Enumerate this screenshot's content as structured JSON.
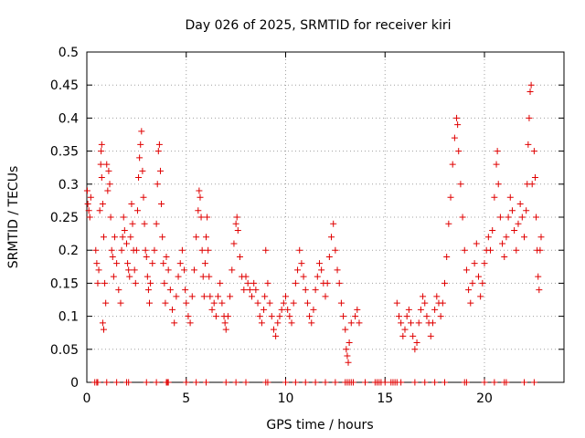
{
  "chart_data": {
    "type": "scatter",
    "title": "Day 026 of 2025, SRMTID for receiver kiri",
    "xlabel": "GPS time / hours",
    "ylabel": "SRMTID / TECUs",
    "xlim": [
      0,
      24
    ],
    "ylim": [
      0,
      0.5
    ],
    "xticks": [
      0,
      5,
      10,
      15,
      20
    ],
    "yticks": [
      0,
      0.05,
      0.1,
      0.15,
      0.2,
      0.25,
      0.3,
      0.35,
      0.4,
      0.45,
      0.5
    ],
    "xtick_labels": [
      "0",
      "5",
      "10",
      "15",
      "20"
    ],
    "ytick_labels": [
      "0",
      "0.05",
      "0.1",
      "0.15",
      "0.2",
      "0.25",
      "0.3",
      "0.35",
      "0.4",
      "0.45",
      "0.5"
    ],
    "grid": true,
    "marker": "+",
    "color": "#e00000",
    "series": [
      {
        "name": "SRMTID",
        "points": [
          [
            0.02,
            0.29
          ],
          [
            0.05,
            0.27
          ],
          [
            0.1,
            0.26
          ],
          [
            0.15,
            0.25
          ],
          [
            0.2,
            0.28
          ],
          [
            0.45,
            0.2
          ],
          [
            0.5,
            0.18
          ],
          [
            0.55,
            0.15
          ],
          [
            0.6,
            0.17
          ],
          [
            0.65,
            0.26
          ],
          [
            0.7,
            0.33
          ],
          [
            0.72,
            0.35
          ],
          [
            0.75,
            0.31
          ],
          [
            0.8,
            0.27
          ],
          [
            0.85,
            0.22
          ],
          [
            0.9,
            0.15
          ],
          [
            0.95,
            0.12
          ],
          [
            0.8,
            0.09
          ],
          [
            0.85,
            0.08
          ],
          [
            0.75,
            0.36
          ],
          [
            1.0,
            0.33
          ],
          [
            1.05,
            0.29
          ],
          [
            1.1,
            0.32
          ],
          [
            1.15,
            0.3
          ],
          [
            1.2,
            0.25
          ],
          [
            1.25,
            0.2
          ],
          [
            1.3,
            0.19
          ],
          [
            1.35,
            0.16
          ],
          [
            1.4,
            0.22
          ],
          [
            1.5,
            0.18
          ],
          [
            1.6,
            0.14
          ],
          [
            1.7,
            0.12
          ],
          [
            1.75,
            0.2
          ],
          [
            1.8,
            0.22
          ],
          [
            1.85,
            0.25
          ],
          [
            1.9,
            0.23
          ],
          [
            2.0,
            0.21
          ],
          [
            2.05,
            0.18
          ],
          [
            2.1,
            0.17
          ],
          [
            2.15,
            0.16
          ],
          [
            2.2,
            0.22
          ],
          [
            2.25,
            0.27
          ],
          [
            2.3,
            0.24
          ],
          [
            2.35,
            0.2
          ],
          [
            2.4,
            0.17
          ],
          [
            2.45,
            0.15
          ],
          [
            2.5,
            0.2
          ],
          [
            2.55,
            0.26
          ],
          [
            2.6,
            0.31
          ],
          [
            2.65,
            0.34
          ],
          [
            2.7,
            0.36
          ],
          [
            2.75,
            0.38
          ],
          [
            2.8,
            0.32
          ],
          [
            2.85,
            0.28
          ],
          [
            2.9,
            0.24
          ],
          [
            2.95,
            0.2
          ],
          [
            3.0,
            0.19
          ],
          [
            3.05,
            0.16
          ],
          [
            3.1,
            0.14
          ],
          [
            3.15,
            0.12
          ],
          [
            3.2,
            0.15
          ],
          [
            3.3,
            0.18
          ],
          [
            3.4,
            0.2
          ],
          [
            3.5,
            0.24
          ],
          [
            3.55,
            0.3
          ],
          [
            3.6,
            0.35
          ],
          [
            3.65,
            0.36
          ],
          [
            3.7,
            0.32
          ],
          [
            3.75,
            0.27
          ],
          [
            3.8,
            0.22
          ],
          [
            3.85,
            0.18
          ],
          [
            3.9,
            0.15
          ],
          [
            3.95,
            0.12
          ],
          [
            4.0,
            0.19
          ],
          [
            4.1,
            0.17
          ],
          [
            4.2,
            0.14
          ],
          [
            4.3,
            0.11
          ],
          [
            4.4,
            0.09
          ],
          [
            4.5,
            0.13
          ],
          [
            4.6,
            0.16
          ],
          [
            4.7,
            0.18
          ],
          [
            4.8,
            0.2
          ],
          [
            4.9,
            0.17
          ],
          [
            4.95,
            0.14
          ],
          [
            5.0,
            0.12
          ],
          [
            5.1,
            0.1
          ],
          [
            5.2,
            0.09
          ],
          [
            5.3,
            0.13
          ],
          [
            5.4,
            0.17
          ],
          [
            5.5,
            0.22
          ],
          [
            5.6,
            0.26
          ],
          [
            5.65,
            0.29
          ],
          [
            5.7,
            0.28
          ],
          [
            5.75,
            0.25
          ],
          [
            5.8,
            0.2
          ],
          [
            5.85,
            0.16
          ],
          [
            5.9,
            0.13
          ],
          [
            5.95,
            0.18
          ],
          [
            6.0,
            0.22
          ],
          [
            6.05,
            0.25
          ],
          [
            6.1,
            0.2
          ],
          [
            6.15,
            0.16
          ],
          [
            6.2,
            0.13
          ],
          [
            6.3,
            0.11
          ],
          [
            6.4,
            0.12
          ],
          [
            6.5,
            0.1
          ],
          [
            6.6,
            0.13
          ],
          [
            6.7,
            0.15
          ],
          [
            6.8,
            0.12
          ],
          [
            6.9,
            0.1
          ],
          [
            6.95,
            0.09
          ],
          [
            7.0,
            0.08
          ],
          [
            7.1,
            0.1
          ],
          [
            7.2,
            0.13
          ],
          [
            7.3,
            0.17
          ],
          [
            7.4,
            0.21
          ],
          [
            7.5,
            0.24
          ],
          [
            7.55,
            0.25
          ],
          [
            7.6,
            0.23
          ],
          [
            7.7,
            0.19
          ],
          [
            7.8,
            0.16
          ],
          [
            7.9,
            0.14
          ],
          [
            8.0,
            0.16
          ],
          [
            8.1,
            0.15
          ],
          [
            8.2,
            0.14
          ],
          [
            8.3,
            0.13
          ],
          [
            8.4,
            0.15
          ],
          [
            8.5,
            0.14
          ],
          [
            8.6,
            0.12
          ],
          [
            8.7,
            0.1
          ],
          [
            8.8,
            0.09
          ],
          [
            8.9,
            0.11
          ],
          [
            8.95,
            0.13
          ],
          [
            9.0,
            0.2
          ],
          [
            9.1,
            0.15
          ],
          [
            9.2,
            0.12
          ],
          [
            9.3,
            0.1
          ],
          [
            9.4,
            0.08
          ],
          [
            9.5,
            0.07
          ],
          [
            9.6,
            0.09
          ],
          [
            9.7,
            0.1
          ],
          [
            9.8,
            0.11
          ],
          [
            9.9,
            0.12
          ],
          [
            10.0,
            0.13
          ],
          [
            10.1,
            0.11
          ],
          [
            10.2,
            0.1
          ],
          [
            10.3,
            0.09
          ],
          [
            10.4,
            0.12
          ],
          [
            10.5,
            0.15
          ],
          [
            10.6,
            0.17
          ],
          [
            10.7,
            0.2
          ],
          [
            10.8,
            0.18
          ],
          [
            10.9,
            0.16
          ],
          [
            11.0,
            0.14
          ],
          [
            11.1,
            0.12
          ],
          [
            11.2,
            0.1
          ],
          [
            11.3,
            0.09
          ],
          [
            11.4,
            0.11
          ],
          [
            11.5,
            0.14
          ],
          [
            11.6,
            0.16
          ],
          [
            11.7,
            0.18
          ],
          [
            11.8,
            0.17
          ],
          [
            11.9,
            0.15
          ],
          [
            12.0,
            0.13
          ],
          [
            12.1,
            0.15
          ],
          [
            12.2,
            0.19
          ],
          [
            12.3,
            0.22
          ],
          [
            12.4,
            0.24
          ],
          [
            12.5,
            0.2
          ],
          [
            12.6,
            0.17
          ],
          [
            12.7,
            0.15
          ],
          [
            12.8,
            0.12
          ],
          [
            12.9,
            0.1
          ],
          [
            13.0,
            0.08
          ],
          [
            13.05,
            0.05
          ],
          [
            13.1,
            0.04
          ],
          [
            13.15,
            0.03
          ],
          [
            13.2,
            0.06
          ],
          [
            13.3,
            0.09
          ],
          [
            13.5,
            0.1
          ],
          [
            13.6,
            0.11
          ],
          [
            13.7,
            0.09
          ],
          [
            15.6,
            0.12
          ],
          [
            15.7,
            0.1
          ],
          [
            15.8,
            0.09
          ],
          [
            15.9,
            0.07
          ],
          [
            16.0,
            0.08
          ],
          [
            16.1,
            0.1
          ],
          [
            16.2,
            0.11
          ],
          [
            16.3,
            0.09
          ],
          [
            16.4,
            0.07
          ],
          [
            16.5,
            0.05
          ],
          [
            16.6,
            0.06
          ],
          [
            16.7,
            0.09
          ],
          [
            16.8,
            0.11
          ],
          [
            16.9,
            0.13
          ],
          [
            17.0,
            0.12
          ],
          [
            17.1,
            0.1
          ],
          [
            17.2,
            0.09
          ],
          [
            17.3,
            0.07
          ],
          [
            17.4,
            0.09
          ],
          [
            17.5,
            0.11
          ],
          [
            17.6,
            0.13
          ],
          [
            17.7,
            0.12
          ],
          [
            17.8,
            0.1
          ],
          [
            17.9,
            0.12
          ],
          [
            18.0,
            0.15
          ],
          [
            18.1,
            0.19
          ],
          [
            18.2,
            0.24
          ],
          [
            18.3,
            0.28
          ],
          [
            18.4,
            0.33
          ],
          [
            18.5,
            0.37
          ],
          [
            18.6,
            0.4
          ],
          [
            18.65,
            0.39
          ],
          [
            18.7,
            0.35
          ],
          [
            18.8,
            0.3
          ],
          [
            18.9,
            0.25
          ],
          [
            19.0,
            0.2
          ],
          [
            19.1,
            0.17
          ],
          [
            19.2,
            0.14
          ],
          [
            19.3,
            0.12
          ],
          [
            19.4,
            0.15
          ],
          [
            19.5,
            0.18
          ],
          [
            19.6,
            0.21
          ],
          [
            19.7,
            0.16
          ],
          [
            19.8,
            0.13
          ],
          [
            19.9,
            0.15
          ],
          [
            20.0,
            0.18
          ],
          [
            20.1,
            0.2
          ],
          [
            20.2,
            0.22
          ],
          [
            20.3,
            0.2
          ],
          [
            20.4,
            0.23
          ],
          [
            20.5,
            0.28
          ],
          [
            20.6,
            0.33
          ],
          [
            20.65,
            0.35
          ],
          [
            20.7,
            0.3
          ],
          [
            20.8,
            0.25
          ],
          [
            20.9,
            0.21
          ],
          [
            21.0,
            0.19
          ],
          [
            21.1,
            0.22
          ],
          [
            21.2,
            0.25
          ],
          [
            21.3,
            0.28
          ],
          [
            21.4,
            0.26
          ],
          [
            21.5,
            0.23
          ],
          [
            21.6,
            0.2
          ],
          [
            21.7,
            0.24
          ],
          [
            21.8,
            0.27
          ],
          [
            21.9,
            0.25
          ],
          [
            22.0,
            0.22
          ],
          [
            22.1,
            0.26
          ],
          [
            22.15,
            0.3
          ],
          [
            22.2,
            0.36
          ],
          [
            22.25,
            0.4
          ],
          [
            22.3,
            0.44
          ],
          [
            22.35,
            0.45
          ],
          [
            22.4,
            0.3
          ],
          [
            22.5,
            0.35
          ],
          [
            22.55,
            0.31
          ],
          [
            22.6,
            0.25
          ],
          [
            22.65,
            0.2
          ],
          [
            22.7,
            0.16
          ],
          [
            22.75,
            0.14
          ],
          [
            22.8,
            0.2
          ],
          [
            22.85,
            0.22
          ]
        ]
      }
    ],
    "zero_markers_x": [
      0.4,
      0.5,
      0.55,
      1.0,
      1.5,
      2.0,
      2.1,
      3.0,
      3.5,
      4.0,
      4.05,
      4.1,
      5.0,
      5.5,
      6.0,
      7.0,
      7.5,
      8.0,
      9.0,
      9.1,
      10.0,
      10.5,
      11.0,
      11.5,
      12.0,
      12.5,
      13.0,
      13.1,
      13.2,
      13.3,
      13.4,
      14.0,
      14.5,
      14.6,
      14.7,
      14.8,
      15.0,
      15.3,
      15.4,
      15.5,
      15.6,
      15.8,
      16.5,
      17.0,
      17.5,
      18.0,
      19.0,
      19.1,
      20.0,
      20.5,
      21.0,
      21.1,
      22.0,
      22.5
    ]
  }
}
